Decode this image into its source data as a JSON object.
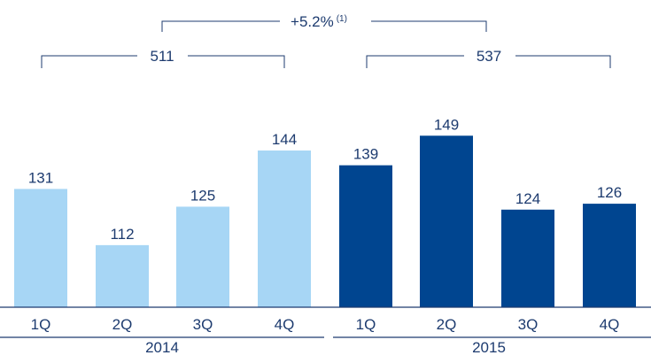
{
  "chart_data": {
    "type": "bar",
    "categories": [
      "1Q",
      "2Q",
      "3Q",
      "4Q",
      "1Q",
      "2Q",
      "3Q",
      "4Q"
    ],
    "years": [
      "2014",
      "2015"
    ],
    "values": [
      131,
      112,
      125,
      144,
      139,
      149,
      124,
      126
    ],
    "year_totals": [
      511,
      537
    ],
    "growth": "+5.2%",
    "growth_note": "(1)",
    "colors": {
      "2014": "#a7d6f5",
      "2015": "#004590",
      "text": "#1d3b6f",
      "lines": "#1d3b6f"
    }
  }
}
